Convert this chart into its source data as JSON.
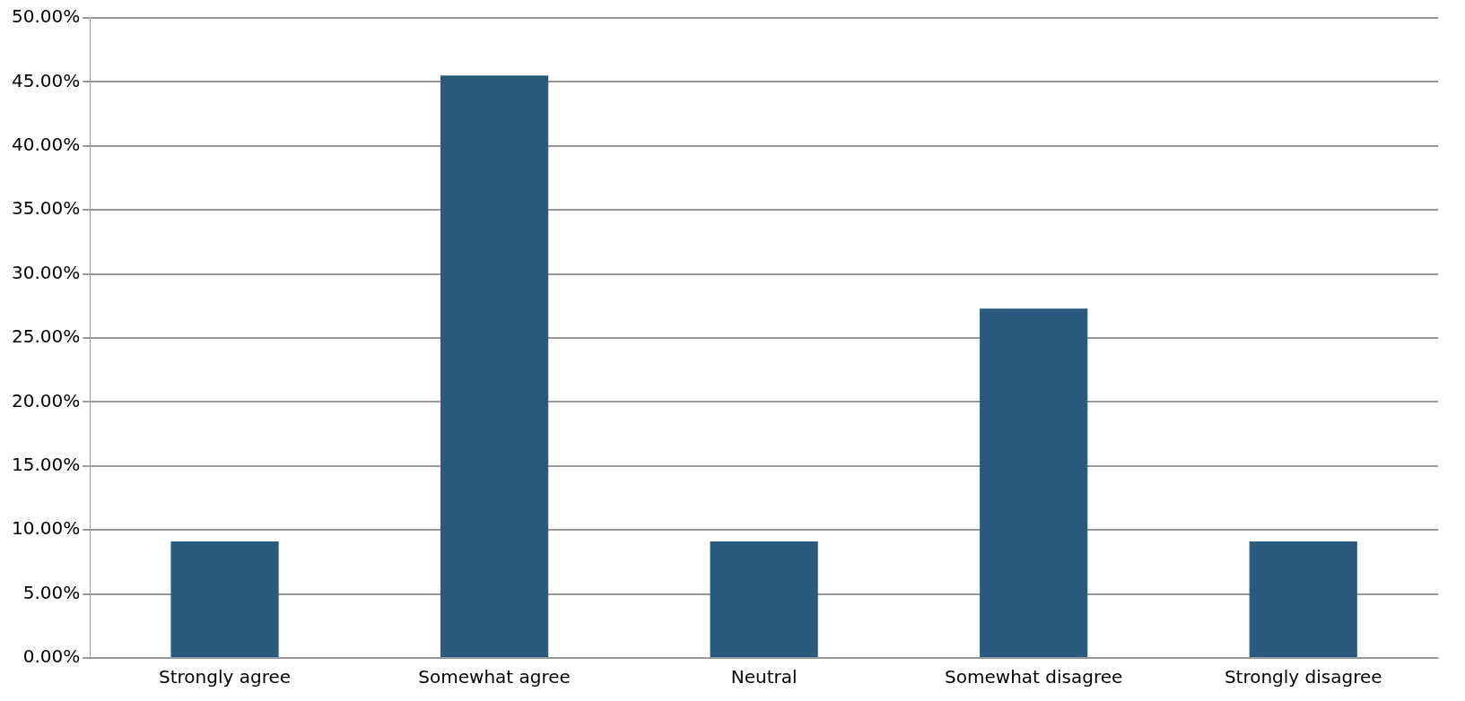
{
  "chart_data": {
    "type": "bar",
    "categories": [
      "Strongly agree",
      "Somewhat agree",
      "Neutral",
      "Somewhat disagree",
      "Strongly disagree"
    ],
    "values": [
      9.1,
      45.5,
      9.1,
      27.3,
      9.1
    ],
    "color": "#2a5b7e",
    "ylim": [
      0,
      50
    ],
    "yticks": [
      {
        "value": 0,
        "label": "0.00%"
      },
      {
        "value": 5,
        "label": "5.00%"
      },
      {
        "value": 10,
        "label": "10.00%"
      },
      {
        "value": 15,
        "label": "15.00%"
      },
      {
        "value": 20,
        "label": "20.00%"
      },
      {
        "value": 25,
        "label": "25.00%"
      },
      {
        "value": 30,
        "label": "30.00%"
      },
      {
        "value": 35,
        "label": "35.00%"
      },
      {
        "value": 40,
        "label": "40.00%"
      },
      {
        "value": 45,
        "label": "45.00%"
      },
      {
        "value": 50,
        "label": "50.00%"
      }
    ],
    "grid": "y",
    "legend": false
  }
}
